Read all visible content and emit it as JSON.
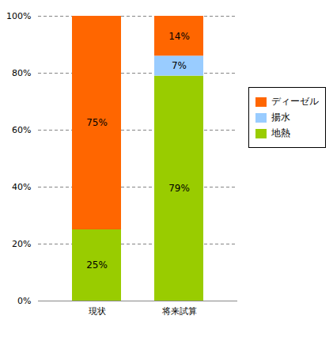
{
  "chart_data": {
    "type": "bar",
    "stacked": true,
    "categories": [
      "現状",
      "将来試算"
    ],
    "series": [
      {
        "name": "地熱",
        "color": "#99CC00",
        "values": [
          25,
          79
        ],
        "value_labels": [
          "25%",
          "79%"
        ]
      },
      {
        "name": "揚水",
        "color": "#99CCFF",
        "values": [
          0,
          7
        ],
        "value_labels": [
          null,
          "7%"
        ]
      },
      {
        "name": "ディーゼル",
        "color": "#FF6600",
        "values": [
          75,
          14
        ],
        "value_labels": [
          "75%",
          "14%"
        ]
      }
    ],
    "data_labels": true,
    "ylim": [
      0,
      100
    ],
    "yticks": [
      {
        "value": 0,
        "label": "0%"
      },
      {
        "value": 20,
        "label": "20%"
      },
      {
        "value": 40,
        "label": "40%"
      },
      {
        "value": 60,
        "label": "60%"
      },
      {
        "value": 80,
        "label": "80%"
      },
      {
        "value": 100,
        "label": "100%"
      }
    ],
    "grid": true,
    "legend": "right"
  }
}
